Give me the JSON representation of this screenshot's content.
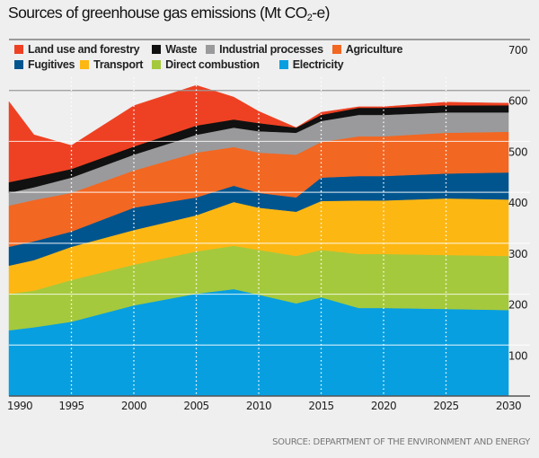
{
  "chart_data": {
    "type": "area",
    "stacked": true,
    "title": "Sources of greenhouse gas emissions (Mt CO2-e)",
    "title_main": "Sources of greenhouse gas emissions (Mt CO",
    "title_sub": "2",
    "title_end": "-e)",
    "xlabel": "",
    "ylabel": "Mt CO2-e",
    "xlim": [
      1990,
      2030
    ],
    "ylim": [
      0,
      700
    ],
    "x": [
      1990,
      1992,
      1995,
      2000,
      2005,
      2008,
      2010,
      2013,
      2015,
      2018,
      2020,
      2025,
      2030
    ],
    "x_ticks": [
      "1990",
      "1995",
      "2000",
      "2005",
      "2010",
      "2015",
      "2020",
      "2025",
      "2030"
    ],
    "x_tick_values": [
      1990,
      1995,
      2000,
      2005,
      2010,
      2015,
      2020,
      2025,
      2030
    ],
    "y_ticks": [
      "100",
      "200",
      "300",
      "400",
      "500",
      "600",
      "700"
    ],
    "y_tick_values": [
      100,
      200,
      300,
      400,
      500,
      600,
      700
    ],
    "grid": true,
    "legend_position": "top-left",
    "series": [
      {
        "name": "Electricity",
        "color": "#079fe0",
        "values": [
          129,
          135,
          146,
          178,
          201,
          210,
          199,
          182,
          194,
          173,
          173,
          171,
          169
        ]
      },
      {
        "name": "Direct combustion",
        "color": "#a5c93c",
        "values": [
          72,
          72,
          82,
          80,
          83,
          85,
          88,
          93,
          93,
          106,
          106,
          106,
          106
        ]
      },
      {
        "name": "Transport",
        "color": "#fdb713",
        "values": [
          55,
          60,
          65,
          68,
          71,
          86,
          83,
          87,
          96,
          105,
          105,
          111,
          111
        ]
      },
      {
        "name": "Fugitives",
        "color": "#00558f",
        "values": [
          37,
          37,
          30,
          44,
          35,
          32,
          29,
          28,
          46,
          48,
          48,
          49,
          53
        ]
      },
      {
        "name": "Agriculture",
        "color": "#f26722",
        "values": [
          81,
          81,
          76,
          73,
          88,
          76,
          79,
          84,
          70,
          78,
          78,
          80,
          80
        ]
      },
      {
        "name": "Industrial processes",
        "color": "#9a9a9c",
        "values": [
          25,
          25,
          30,
          31,
          35,
          38,
          42,
          43,
          41,
          42,
          42,
          40,
          38
        ]
      },
      {
        "name": "Waste",
        "color": "#111111",
        "values": [
          21,
          20,
          17,
          16,
          18,
          16,
          16,
          10,
          12,
          14,
          14,
          14,
          14
        ]
      },
      {
        "name": "Land use and forestry",
        "color": "#ee4123",
        "values": [
          158,
          83,
          46,
          80,
          79,
          44,
          23,
          0,
          5,
          2,
          2,
          6,
          4
        ]
      }
    ]
  },
  "legend": {
    "rows": [
      [
        {
          "label": "Land use and forestry",
          "color": "#ee4123"
        },
        {
          "label": "Waste",
          "color": "#111111"
        },
        {
          "label": "Industrial processes",
          "color": "#9a9a9c"
        },
        {
          "label": "Agriculture",
          "color": "#f26722"
        }
      ],
      [
        {
          "label": "Fugitives",
          "color": "#00558f"
        },
        {
          "label": "Transport",
          "color": "#fdb713"
        },
        {
          "label": "Direct combustion",
          "color": "#a5c93c"
        },
        {
          "label": "Electricity",
          "color": "#079fe0"
        }
      ]
    ]
  },
  "source": "SOURCE: DEPARTMENT OF THE ENVIRONMENT AND ENERGY"
}
